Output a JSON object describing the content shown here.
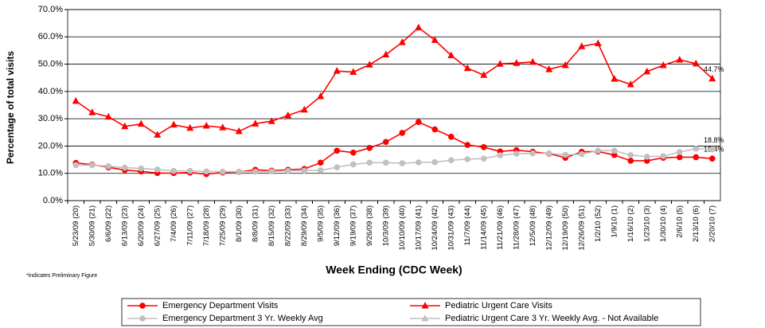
{
  "chart_data": {
    "type": "line",
    "y_label": "Percentage of total visits",
    "x_label": "Week Ending (CDC Week)",
    "footnote": "*indicates Preliminary Figure",
    "categories": [
      "5/23/09 (20)",
      "5/30/09 (21)",
      "6/6/09 (22)",
      "6/13/09 (23)",
      "6/20/09 (24)",
      "6/27/09 (25)",
      "7/4/09 (26)",
      "7/11/09 (27)",
      "7/18/09 (28)",
      "7/25/09 (29)",
      "8/1/09 (30)",
      "8/8/09 (31)",
      "8/15/09 (32)",
      "8/22/09 (33)",
      "8/29/09 (34)",
      "9/5/09 (35)",
      "9/12/09 (36)",
      "9/19/09 (37)",
      "9/26/09 (38)",
      "10/3/09 (39)",
      "10/10/09 (40)",
      "10/17/09 (41)",
      "10/24/09 (42)",
      "10/31/09 (43)",
      "11/7/09 (44)",
      "11/14/09 (45)",
      "11/21/09 (46)",
      "11/28/09 (47)",
      "12/5/09 (48)",
      "12/12/09 (49)",
      "12/19/09 (50)",
      "12/26/09 (51)",
      "1/2/10 (52)",
      "1/9/10 (1)",
      "1/16/10 (2)",
      "1/23/10 (3)",
      "1/30/10 (4)",
      "2/6/10 (5)",
      "2/13/10 (6)",
      "2/20/10 (7)"
    ],
    "series": [
      {
        "name": "Emergency Department Visits",
        "color": "#ff0000",
        "marker": "circle",
        "values": [
          13.8,
          13.2,
          12.2,
          11.2,
          10.7,
          10.1,
          10.1,
          10.3,
          9.7,
          10.3,
          10.5,
          11.3,
          11.0,
          11.3,
          11.6,
          13.9,
          18.3,
          17.6,
          19.3,
          21.5,
          24.8,
          28.8,
          26.1,
          23.4,
          20.4,
          19.6,
          18.0,
          18.5,
          17.9,
          17.2,
          15.7,
          17.9,
          18.0,
          16.7,
          14.6,
          14.6,
          15.7,
          15.9,
          15.9,
          15.4
        ],
        "value_labels": [
          null,
          null,
          null,
          null,
          null,
          null,
          null,
          null,
          null,
          null,
          null,
          null,
          null,
          null,
          null,
          null,
          null,
          null,
          null,
          null,
          null,
          null,
          null,
          null,
          null,
          null,
          null,
          null,
          null,
          null,
          null,
          null,
          null,
          null,
          null,
          null,
          null,
          null,
          null,
          "15.4%"
        ]
      },
      {
        "name": "Pediatric Urgent Care Visits",
        "color": "#ff0000",
        "marker": "triangle",
        "values": [
          36.5,
          32.3,
          30.7,
          27.2,
          28.1,
          24.1,
          27.8,
          26.6,
          27.4,
          26.8,
          25.4,
          28.2,
          29.1,
          31.2,
          33.3,
          38.2,
          47.5,
          47.1,
          49.8,
          53.5,
          58.0,
          63.4,
          58.8,
          53.2,
          48.5,
          46.0,
          50.1,
          50.4,
          50.8,
          48.1,
          49.6,
          56.5,
          57.6,
          44.6,
          42.6,
          47.3,
          49.6,
          51.6,
          50.2,
          44.7
        ],
        "value_labels": [
          null,
          null,
          null,
          null,
          null,
          null,
          null,
          null,
          null,
          null,
          null,
          null,
          null,
          null,
          null,
          null,
          null,
          null,
          null,
          null,
          null,
          null,
          null,
          null,
          null,
          null,
          null,
          null,
          null,
          null,
          null,
          null,
          null,
          null,
          null,
          null,
          null,
          null,
          null,
          "44.7%"
        ]
      },
      {
        "name": "Emergency Department 3 Yr. Weekly Avg",
        "color": "#c0c0c0",
        "marker": "circle",
        "values": [
          13.0,
          13.0,
          12.6,
          12.1,
          11.8,
          11.4,
          10.9,
          10.9,
          10.7,
          10.6,
          10.6,
          10.6,
          10.7,
          10.9,
          11.0,
          11.1,
          12.2,
          13.3,
          13.9,
          13.9,
          13.7,
          14.0,
          14.1,
          14.8,
          15.2,
          15.4,
          16.6,
          17.2,
          17.3,
          17.3,
          16.8,
          17.0,
          18.3,
          18.3,
          16.7,
          16.1,
          16.3,
          17.8,
          19.0,
          18.8
        ],
        "value_labels": [
          null,
          null,
          null,
          null,
          null,
          null,
          null,
          null,
          null,
          null,
          null,
          null,
          null,
          null,
          null,
          null,
          null,
          null,
          null,
          null,
          null,
          null,
          null,
          null,
          null,
          null,
          null,
          null,
          null,
          null,
          null,
          null,
          null,
          null,
          null,
          null,
          null,
          null,
          null,
          "18.8%"
        ]
      },
      {
        "name": "Pediatric Urgent Care 3 Yr. Weekly Avg. -  Not Available",
        "color": "#c0c0c0",
        "marker": "triangle",
        "values": [
          null,
          null,
          null,
          null,
          null,
          null,
          null,
          null,
          null,
          null,
          null,
          null,
          null,
          null,
          null,
          null,
          null,
          null,
          null,
          null,
          null,
          null,
          null,
          null,
          null,
          null,
          null,
          null,
          null,
          null,
          null,
          null,
          null,
          null,
          null,
          null,
          null,
          null,
          null,
          null
        ]
      }
    ],
    "ylim": [
      0,
      70
    ],
    "yticks": [
      {
        "value": 0,
        "label": "0.0%"
      },
      {
        "value": 10,
        "label": "10.0%"
      },
      {
        "value": 20,
        "label": "20.0%"
      },
      {
        "value": 30,
        "label": "30.0%"
      },
      {
        "value": 40,
        "label": "40.0%"
      },
      {
        "value": 50,
        "label": "50.0%"
      },
      {
        "value": 60,
        "label": "60.0%"
      },
      {
        "value": 70,
        "label": "70.0%"
      }
    ],
    "grid": true
  }
}
